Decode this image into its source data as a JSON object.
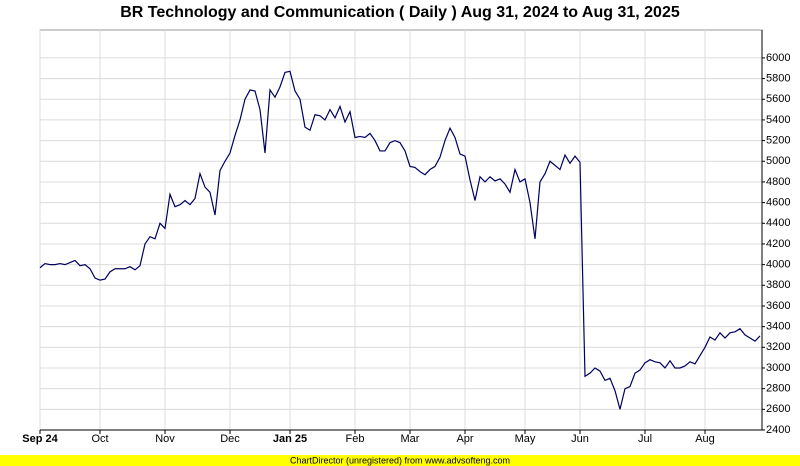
{
  "chart_data": {
    "type": "line",
    "title": "BR Technology and Communication ( Daily ) Aug 31, 2024 to Aug 31, 2025",
    "footer": "ChartDirector (unregistered) from www.advsofteng.com",
    "categories": [
      "Sep 24",
      null,
      null,
      null,
      null,
      null,
      null,
      null,
      null,
      null,
      null,
      null,
      "Oct",
      null,
      null,
      null,
      null,
      null,
      null,
      null,
      null,
      null,
      null,
      null,
      null,
      "Nov",
      null,
      null,
      null,
      null,
      null,
      null,
      null,
      null,
      null,
      null,
      null,
      null,
      "Dec",
      null,
      null,
      null,
      null,
      null,
      null,
      null,
      null,
      null,
      null,
      null,
      "Jan 25",
      null,
      null,
      null,
      null,
      null,
      null,
      null,
      null,
      null,
      null,
      null,
      null,
      "Feb",
      null,
      null,
      null,
      null,
      null,
      null,
      null,
      null,
      null,
      null,
      "Mar",
      null,
      null,
      null,
      null,
      null,
      null,
      null,
      null,
      null,
      null,
      "Apr",
      null,
      null,
      null,
      null,
      null,
      null,
      null,
      null,
      null,
      null,
      null,
      "May",
      null,
      null,
      null,
      null,
      null,
      null,
      null,
      null,
      null,
      null,
      "Jun",
      null,
      null,
      null,
      null,
      null,
      null,
      null,
      null,
      null,
      null,
      null,
      null,
      "Jul",
      null,
      null,
      null,
      null,
      null,
      null,
      null,
      null,
      null,
      null,
      null,
      "Aug",
      null,
      null,
      null,
      null,
      null,
      null,
      null,
      null,
      null,
      null,
      null
    ],
    "values": [
      3970,
      4010,
      4000,
      4000,
      4010,
      4000,
      4020,
      4040,
      3990,
      4000,
      3960,
      3870,
      3850,
      3860,
      3930,
      3960,
      3960,
      3960,
      3980,
      3950,
      3990,
      4200,
      4270,
      4250,
      4400,
      4350,
      4680,
      4560,
      4580,
      4620,
      4580,
      4640,
      4880,
      4750,
      4700,
      4480,
      4910,
      5000,
      5080,
      5250,
      5400,
      5600,
      5690,
      5680,
      5500,
      5080,
      5690,
      5620,
      5720,
      5860,
      5870,
      5680,
      5600,
      5330,
      5300,
      5450,
      5440,
      5400,
      5500,
      5420,
      5530,
      5380,
      5480,
      5230,
      5240,
      5230,
      5270,
      5200,
      5100,
      5100,
      5180,
      5200,
      5180,
      5100,
      4950,
      4940,
      4900,
      4870,
      4920,
      4950,
      5040,
      5200,
      5320,
      5230,
      5070,
      5050,
      4820,
      4620,
      4850,
      4800,
      4850,
      4810,
      4830,
      4780,
      4700,
      4920,
      4800,
      4830,
      4600,
      4250,
      4800,
      4880,
      5000,
      4960,
      4920,
      5060,
      4980,
      5050,
      4990,
      2920,
      2950,
      3000,
      2970,
      2880,
      2900,
      2780,
      2600,
      2800,
      2820,
      2950,
      2980,
      3050,
      3080,
      3060,
      3050,
      3000,
      3070,
      3000,
      3000,
      3020,
      3060,
      3040,
      3120,
      3200,
      3300,
      3270,
      3340,
      3290,
      3340,
      3350,
      3380,
      3320,
      3290,
      3260,
      3310
    ],
    "color": "#000060",
    "ylim": [
      2400,
      6270
    ],
    "yticks": [
      2400,
      2600,
      2800,
      3000,
      3200,
      3400,
      3600,
      3800,
      4000,
      4200,
      4400,
      4600,
      4800,
      5000,
      5200,
      5400,
      5600,
      5800,
      6000
    ],
    "grid": true
  }
}
